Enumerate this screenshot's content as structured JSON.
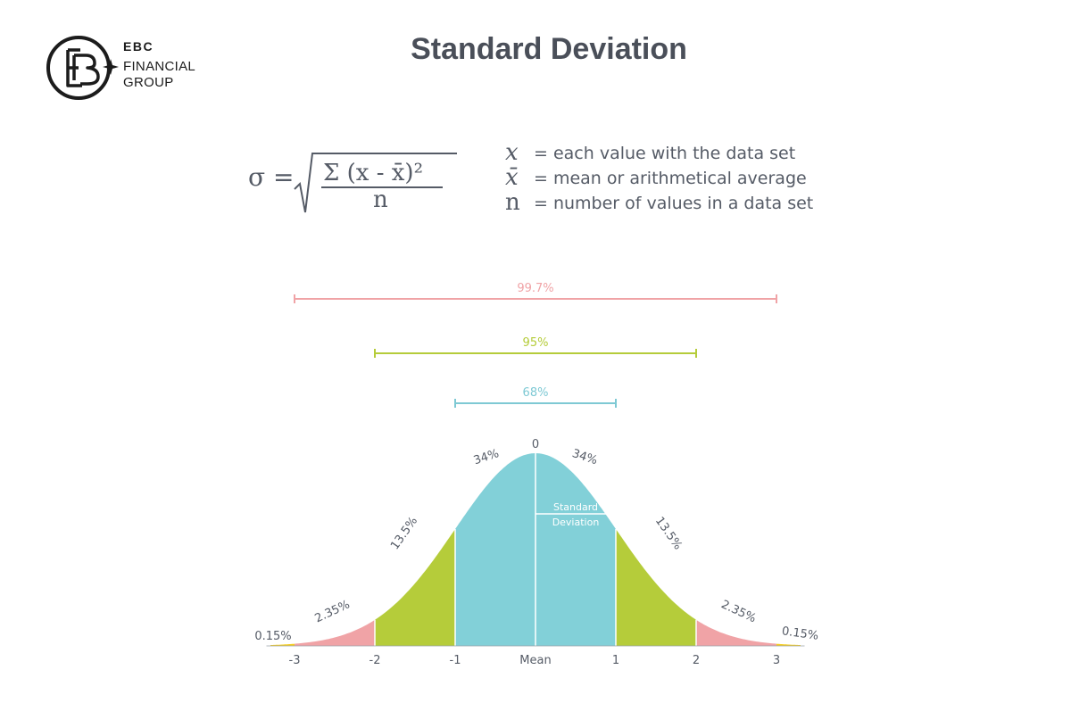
{
  "logo": {
    "line1": "EBC",
    "line2": "FINANCIAL",
    "line3": "GROUP"
  },
  "title": "Standard Deviation",
  "formula": {
    "lhs": "σ =",
    "numerator": "Σ (x - x̄)²",
    "denominator": "n"
  },
  "legend": [
    {
      "symbol": "x",
      "text": "= each value with the data set"
    },
    {
      "symbol": "x̄",
      "text": "= mean or arithmetical average"
    },
    {
      "symbol": "n",
      "text": "= number of values in a data set"
    }
  ],
  "chart_data": {
    "type": "area",
    "x_ticks": [
      "-3",
      "-2",
      "-1",
      "Mean",
      "1",
      "2",
      "3"
    ],
    "peak_label": "0",
    "ranges": [
      {
        "label": "99.7%",
        "from": -3,
        "to": 3,
        "color": "#f0a3a6"
      },
      {
        "label": "95%",
        "from": -2,
        "to": 2,
        "color": "#b5cc3a"
      },
      {
        "label": "68%",
        "from": -1,
        "to": 1,
        "color": "#7ec9d4"
      }
    ],
    "regions": [
      {
        "from": -3.3,
        "to": -3,
        "percent": "0.15%",
        "color": "#f5cd1e"
      },
      {
        "from": -3,
        "to": -2,
        "percent": "2.35%",
        "color": "#f0a3a6"
      },
      {
        "from": -2,
        "to": -1,
        "percent": "13.5%",
        "color": "#b5cc3a"
      },
      {
        "from": -1,
        "to": 0,
        "percent": "34%",
        "color": "#82d0d8"
      },
      {
        "from": 0,
        "to": 1,
        "percent": "34%",
        "color": "#82d0d8"
      },
      {
        "from": 1,
        "to": 2,
        "percent": "13.5%",
        "color": "#b5cc3a"
      },
      {
        "from": 2,
        "to": 3,
        "percent": "2.35%",
        "color": "#f0a3a6"
      },
      {
        "from": 3,
        "to": 3.3,
        "percent": "0.15%",
        "color": "#f5cd1e"
      }
    ],
    "std_label": [
      "Standard",
      "Deviation"
    ]
  }
}
